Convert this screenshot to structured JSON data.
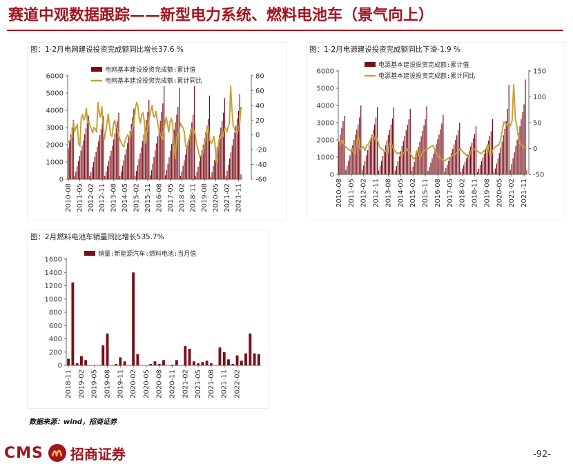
{
  "header": {
    "title": "赛道中观数据跟踪——新型电力系统、燃料电池车（景气向上）",
    "accent": "#a3131d"
  },
  "colors": {
    "bar": "#7a0f18",
    "line": "#c8a13a",
    "accent": "#a3131d"
  },
  "source": "数据来源：wind，招商证券",
  "footer": {
    "logo_cms": "CMS",
    "logo_name": "招商证券",
    "logo_icon": "cms-ribbon-icon",
    "page_number": "-92-"
  },
  "chart_data": [
    {
      "caption": "图：1-2月电网建设投资完成额同比增长37.6 %",
      "type": "bar+line",
      "legend": {
        "bar": "电网基本建设投资完成额:累计值",
        "line": "电网基本建设投资完成额:累计同比",
        "placement": "top"
      },
      "ylim": [
        0,
        6000
      ],
      "yticks": [
        "0",
        "1000",
        "2000",
        "3000",
        "4000",
        "5000",
        "6000"
      ],
      "y2lim": [
        -60,
        80
      ],
      "y2ticks": [
        "-60",
        "-40",
        "-20",
        "0",
        "20",
        "40",
        "60",
        "80"
      ],
      "xtick_labels": [
        "2010-08",
        "2011-05",
        "2012-02",
        "2012-11",
        "2013-08",
        "2014-05",
        "2015-02",
        "2015-11",
        "2016-08",
        "2017-05",
        "2018-02",
        "2018-11",
        "2019-08",
        "2020-05",
        "2021-02",
        "2021-11"
      ],
      "bars": [
        {
          "year": 2010,
          "values": [
            1800,
            2200,
            2600,
            3000,
            3450
          ]
        },
        {
          "year": 2011,
          "values": [
            200,
            450,
            750,
            1050,
            1350,
            1650,
            1950,
            2250,
            2600,
            2950,
            3300,
            3700
          ]
        },
        {
          "year": 2012,
          "values": [
            200,
            430,
            700,
            1000,
            1300,
            1600,
            1900,
            2200,
            2550,
            2900,
            3250,
            3650
          ]
        },
        {
          "year": 2013,
          "values": [
            200,
            450,
            750,
            1050,
            1350,
            1650,
            1950,
            2300,
            2650,
            3000,
            3400,
            3850
          ]
        },
        {
          "year": 2014,
          "values": [
            200,
            450,
            780,
            1100,
            1430,
            1760,
            2100,
            2450,
            2800,
            3200,
            3600,
            4100
          ]
        },
        {
          "year": 2015,
          "values": [
            210,
            480,
            820,
            1160,
            1500,
            1860,
            2220,
            2600,
            3000,
            3450,
            3900,
            4600
          ]
        },
        {
          "year": 2016,
          "values": [
            220,
            520,
            900,
            1280,
            1670,
            2080,
            2500,
            2950,
            3400,
            3900,
            4400,
            5400
          ]
        },
        {
          "year": 2017,
          "values": [
            230,
            530,
            900,
            1270,
            1650,
            2050,
            2450,
            2870,
            3300,
            3750,
            4200,
            5300
          ]
        },
        {
          "year": 2018,
          "values": [
            200,
            450,
            780,
            1100,
            1430,
            1780,
            2130,
            2500,
            2900,
            3300,
            3750,
            5400
          ]
        },
        {
          "year": 2019,
          "values": [
            180,
            420,
            730,
            1040,
            1350,
            1680,
            2010,
            2360,
            2720,
            3100,
            3500,
            4850
          ]
        },
        {
          "year": 2020,
          "values": [
            150,
            400,
            760,
            1110,
            1480,
            1850,
            2220,
            2600,
            3000,
            3400,
            3850,
            4700
          ]
        },
        {
          "year": 2021,
          "values": [
            190,
            480,
            840,
            1200,
            1570,
            1950,
            2330,
            2720,
            3120,
            3530,
            3960,
            4950
          ]
        },
        {
          "year": 2022,
          "values": [
            280
          ]
        }
      ],
      "line": [
        -10,
        -8,
        -5,
        0,
        18,
        5,
        10,
        14,
        -12,
        -15,
        22,
        28,
        20,
        24,
        36,
        16,
        18,
        12,
        8,
        3,
        10,
        8,
        4,
        44,
        30,
        24,
        38,
        16,
        -6,
        4,
        16,
        28,
        12,
        0,
        -2,
        14,
        20,
        12,
        8,
        0,
        -6,
        -10,
        -14,
        -16,
        -8,
        -4,
        0,
        -2,
        -3,
        4,
        10,
        14,
        36,
        44,
        40,
        22,
        16,
        28,
        30,
        18,
        -12,
        4,
        12,
        24,
        32,
        40,
        26,
        24,
        32,
        20,
        10,
        2,
        -2,
        -6,
        6,
        16,
        24,
        14,
        4,
        18,
        22,
        14,
        -14,
        -32,
        -8,
        0,
        6,
        16,
        12,
        10,
        4,
        -14,
        -18,
        -10,
        -4,
        4,
        8,
        2,
        6,
        -6,
        -16,
        -22,
        -30,
        -28,
        -26,
        -20,
        -10,
        0,
        12,
        6,
        -8,
        -12,
        -8,
        -2,
        -16,
        -38,
        -20,
        -6,
        -4,
        0,
        -2,
        6,
        10,
        4,
        10,
        16,
        66,
        34,
        12,
        8,
        4,
        2,
        8,
        16,
        38
      ]
    },
    {
      "caption": "图：1-2月电源建设投资完成额同比下滑-1.9 %",
      "type": "bar+line",
      "legend": {
        "bar": "电源基本建设投资完成额:累计值",
        "line": "电源基本建设投资完成额:累计同比",
        "placement": "top"
      },
      "ylim": [
        0,
        6000
      ],
      "yticks": [
        "0",
        "1000",
        "2000",
        "3000",
        "4000",
        "5000",
        "6000"
      ],
      "y2lim": [
        -50,
        150
      ],
      "y2ticks": [
        "-50",
        "0",
        "50",
        "100",
        "150"
      ],
      "xtick_labels": [
        "2010-08",
        "2011-05",
        "2012-02",
        "2012-11",
        "2013-08",
        "2014-05",
        "2015-02",
        "2015-11",
        "2016-08",
        "2017-05",
        "2018-02",
        "2018-11",
        "2019-08",
        "2020-05",
        "2021-02",
        "2021-11"
      ],
      "bars": [
        {
          "year": 2010,
          "values": [
            1900,
            2300,
            2700,
            3100,
            3400
          ]
        },
        {
          "year": 2011,
          "values": [
            250,
            500,
            800,
            1100,
            1400,
            1700,
            2000,
            2300,
            2600,
            2900,
            3300,
            4000
          ]
        },
        {
          "year": 2012,
          "values": [
            250,
            520,
            800,
            1100,
            1400,
            1700,
            2000,
            2300,
            2600,
            2900,
            3300,
            3900
          ]
        },
        {
          "year": 2013,
          "values": [
            220,
            500,
            780,
            1080,
            1380,
            1680,
            1980,
            2280,
            2580,
            2900,
            3250,
            3900
          ]
        },
        {
          "year": 2014,
          "values": [
            220,
            480,
            760,
            1050,
            1340,
            1640,
            1940,
            2240,
            2560,
            2880,
            3200,
            3800
          ]
        },
        {
          "year": 2015,
          "values": [
            200,
            450,
            720,
            1000,
            1290,
            1590,
            1890,
            2200,
            2520,
            2850,
            3200,
            3950
          ]
        },
        {
          "year": 2016,
          "values": [
            200,
            430,
            680,
            940,
            1200,
            1470,
            1750,
            2030,
            2320,
            2620,
            2950,
            3450
          ]
        },
        {
          "year": 2017,
          "values": [
            160,
            360,
            570,
            790,
            1020,
            1250,
            1490,
            1740,
            2000,
            2270,
            2550,
            3000
          ]
        },
        {
          "year": 2018,
          "values": [
            150,
            330,
            530,
            730,
            940,
            1160,
            1380,
            1610,
            1850,
            2100,
            2350,
            2800
          ]
        },
        {
          "year": 2019,
          "values": [
            150,
            330,
            540,
            760,
            980,
            1210,
            1450,
            1700,
            1960,
            2230,
            2500,
            3200
          ]
        },
        {
          "year": 2020,
          "values": [
            140,
            340,
            620,
            920,
            1230,
            1560,
            1900,
            2270,
            2650,
            3100,
            3800,
            5200
          ]
        },
        {
          "year": 2021,
          "values": [
            250,
            600,
            940,
            1290,
            1650,
            2020,
            2400,
            2790,
            3200,
            3620,
            4060,
            5500
          ]
        },
        {
          "year": 2022,
          "values": [
            250
          ]
        }
      ],
      "line": [
        4,
        10,
        16,
        8,
        3,
        1,
        -2,
        -4,
        0,
        -8,
        -10,
        16,
        22,
        -2,
        2,
        4,
        -4,
        6,
        8,
        14,
        22,
        26,
        18,
        24,
        14,
        4,
        0,
        -2,
        -6,
        -4,
        -10,
        8,
        12,
        4,
        -2,
        -6,
        -10,
        -8,
        -12,
        -14,
        -8,
        -4,
        0,
        -6,
        -10,
        -14,
        -20,
        -18,
        -4,
        -8,
        -20,
        -10,
        -6,
        -4,
        -2,
        0,
        2,
        4,
        6,
        0,
        -8,
        -14,
        -18,
        -20,
        -22,
        -24,
        -22,
        -20,
        -18,
        -16,
        -14,
        -12,
        -10,
        -8,
        -4,
        0,
        -4,
        -8,
        -10,
        -14,
        -16,
        -10,
        -2,
        0,
        -2,
        -4,
        -6,
        -8,
        -10,
        -6,
        -4,
        0,
        8,
        -10,
        -14,
        -4,
        2,
        4,
        6,
        8,
        18,
        36,
        52,
        48,
        44,
        50,
        44,
        54,
        124,
        60,
        42,
        20,
        10,
        6,
        4,
        2,
        0
      ]
    },
    {
      "caption": "图：2月燃料电池车销量同比增长535.7%",
      "type": "bar",
      "legend": {
        "bar": "销量:新能源汽车:燃料电池:当月值",
        "placement": "top"
      },
      "ylim": [
        0,
        1600
      ],
      "yticks": [
        "0",
        "200",
        "400",
        "600",
        "800",
        "1000",
        "1200",
        "1400",
        "1600"
      ],
      "xtick_labels": [
        "2018-11",
        "2019-02",
        "2019-05",
        "2019-08",
        "2019-11",
        "2020-02",
        "2020-05",
        "2020-08",
        "2020-11",
        "2021-02",
        "2021-05",
        "2021-08",
        "2021-11",
        "2022-02"
      ],
      "values": [
        100,
        1250,
        30,
        140,
        80,
        0,
        0,
        5,
        300,
        480,
        0,
        20,
        120,
        60,
        5,
        1400,
        170,
        0,
        0,
        20,
        60,
        20,
        80,
        0,
        10,
        80,
        0,
        290,
        250,
        60,
        30,
        50,
        70,
        30,
        0,
        270,
        200,
        90,
        20,
        150,
        70,
        180,
        480,
        180,
        170
      ]
    }
  ]
}
